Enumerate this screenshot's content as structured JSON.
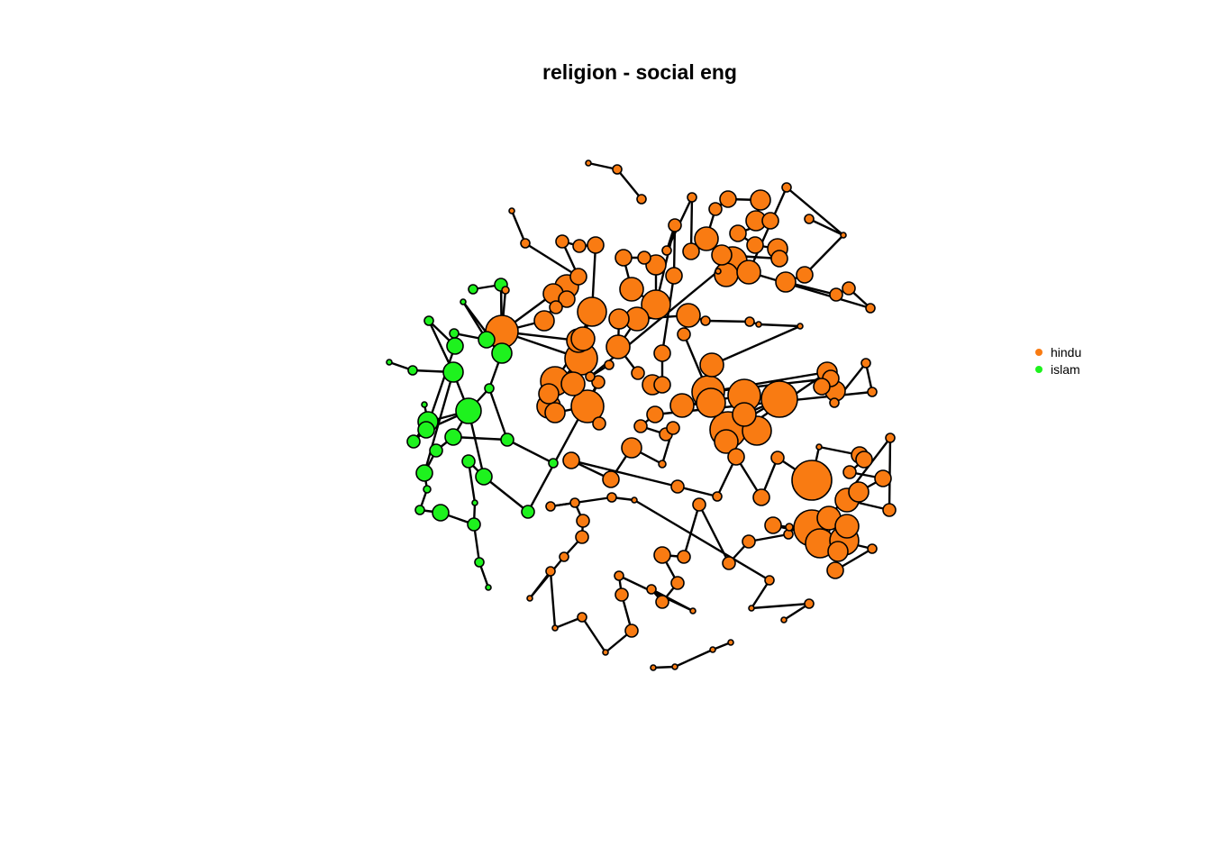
{
  "title": "religion - social eng",
  "legend": [
    {
      "label": "hindu",
      "color": "#F97B12"
    },
    {
      "label": "islam",
      "color": "#1EF21E"
    }
  ],
  "colors": {
    "hindu": "#F97B12",
    "islam": "#1EF21E",
    "edge": "#000000",
    "outline": "#000000"
  }
}
